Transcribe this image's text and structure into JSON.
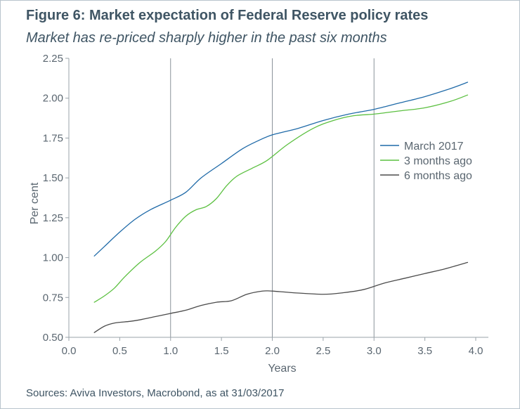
{
  "figure": {
    "title": "Figure 6: Market expectation of Federal Reserve policy rates",
    "subtitle": "Market has re-priced sharply higher in the past six months",
    "source": "Sources: Aviva Investors, Macrobond, as at 31/03/2017"
  },
  "chart_data": {
    "type": "line",
    "xlabel": "Years",
    "ylabel": "Per cent",
    "xlim": [
      0,
      4.0
    ],
    "ylim": [
      0.5,
      2.25
    ],
    "xticks": [
      0.0,
      0.5,
      1.0,
      1.5,
      2.0,
      2.5,
      3.0,
      3.5,
      4.0
    ],
    "xtick_labels": [
      "0.0",
      "0.5",
      "1.0",
      "1.5",
      "2.0",
      "2.5",
      "3.0",
      "3.5",
      "4.0"
    ],
    "yticks": [
      0.5,
      0.75,
      1.0,
      1.25,
      1.5,
      1.75,
      2.0,
      2.25
    ],
    "ytick_labels": [
      "0.50",
      "0.75",
      "1.00",
      "1.25",
      "1.50",
      "1.75",
      "2.00",
      "2.25"
    ],
    "vertical_gridlines": [
      1.0,
      2.0,
      3.0
    ],
    "legend_position": "right",
    "series": [
      {
        "name": "March 2017",
        "color": "#1f6aa8",
        "x": [
          0.25,
          0.35,
          0.5,
          0.65,
          0.8,
          1.0,
          1.15,
          1.3,
          1.5,
          1.7,
          1.85,
          2.0,
          2.25,
          2.5,
          2.75,
          3.0,
          3.25,
          3.5,
          3.75,
          3.92
        ],
        "y": [
          1.01,
          1.07,
          1.16,
          1.24,
          1.3,
          1.36,
          1.41,
          1.5,
          1.59,
          1.68,
          1.73,
          1.77,
          1.81,
          1.86,
          1.9,
          1.93,
          1.97,
          2.01,
          2.06,
          2.1
        ]
      },
      {
        "name": "3 months ago",
        "color": "#5cc041",
        "x": [
          0.25,
          0.35,
          0.45,
          0.55,
          0.7,
          0.85,
          0.95,
          1.05,
          1.15,
          1.25,
          1.35,
          1.45,
          1.55,
          1.65,
          1.8,
          1.95,
          2.15,
          2.4,
          2.6,
          2.8,
          3.0,
          3.25,
          3.5,
          3.75,
          3.92
        ],
        "y": [
          0.72,
          0.76,
          0.81,
          0.88,
          0.97,
          1.04,
          1.1,
          1.19,
          1.26,
          1.3,
          1.32,
          1.37,
          1.45,
          1.51,
          1.56,
          1.61,
          1.71,
          1.81,
          1.86,
          1.89,
          1.9,
          1.92,
          1.94,
          1.98,
          2.02
        ]
      },
      {
        "name": "6 months ago",
        "color": "#4b4b4b",
        "x": [
          0.25,
          0.35,
          0.45,
          0.6,
          0.7,
          0.85,
          1.0,
          1.15,
          1.3,
          1.45,
          1.6,
          1.75,
          1.9,
          2.0,
          2.2,
          2.5,
          2.7,
          2.9,
          3.1,
          3.3,
          3.5,
          3.7,
          3.92
        ],
        "y": [
          0.53,
          0.57,
          0.59,
          0.6,
          0.61,
          0.63,
          0.65,
          0.67,
          0.7,
          0.72,
          0.73,
          0.77,
          0.79,
          0.79,
          0.78,
          0.77,
          0.78,
          0.8,
          0.84,
          0.87,
          0.9,
          0.93,
          0.97
        ]
      }
    ]
  }
}
